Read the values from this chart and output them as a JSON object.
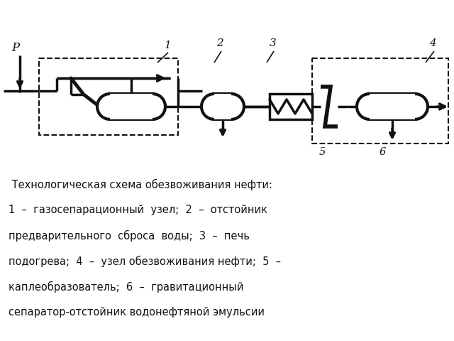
{
  "bg_color": "#ffffff",
  "lc": "#111111",
  "lw": 2.5,
  "dlw": 1.5,
  "caption_lines": [
    " Технологическая схема обезвоживания нефти:",
    "1  –  газосепарационный  узел;  2  –  отстойник",
    "предварительного  сброса  воды;  3  –  печь",
    "подогрева;  4  –  узел обезвоживания нефти;  5  –",
    "каплеобразователь;  6  –  гравитационный",
    "сепаратор-отстойник водонефтяной эмульсии"
  ]
}
